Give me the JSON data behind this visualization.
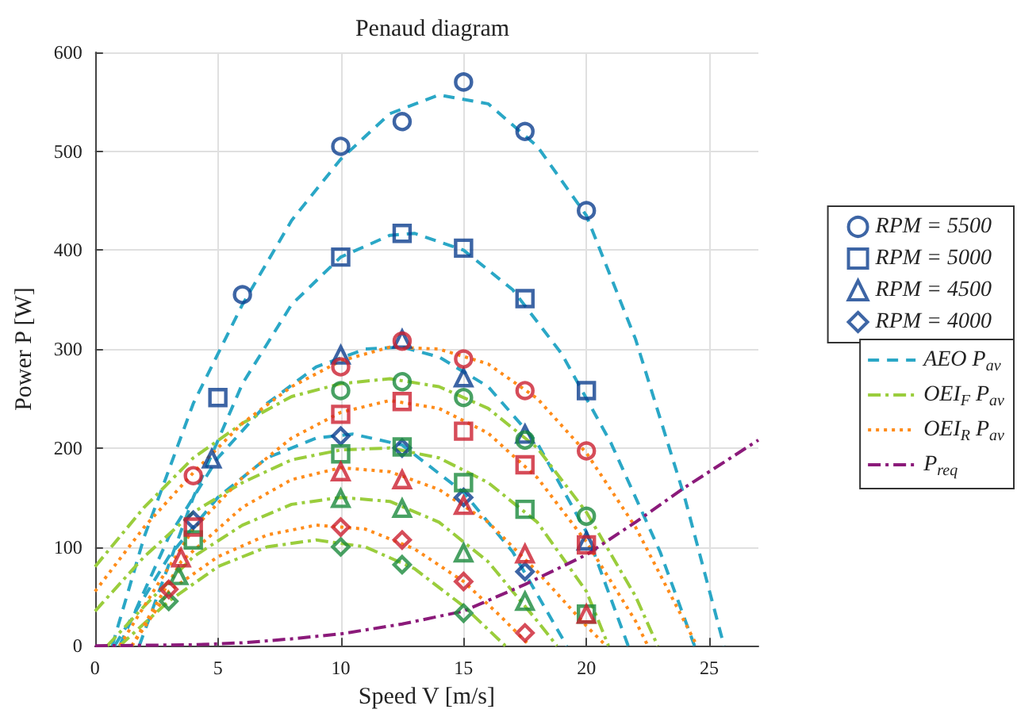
{
  "chart_data": {
    "type": "scatter",
    "title": "Penaud diagram",
    "xlabel": "Speed V [m/s]",
    "ylabel": "Power P [W]",
    "xlim": [
      0,
      27
    ],
    "xticks": [
      0,
      5,
      10,
      15,
      20,
      25
    ],
    "ylim": [
      0,
      600
    ],
    "yticks": [
      0,
      100,
      200,
      300,
      400,
      500,
      600
    ],
    "grid": true,
    "legend": "right",
    "series": [
      {
        "name": "RPM = 5500",
        "color": "#0d3f8f",
        "marker": "circle",
        "x": [
          6,
          10,
          12.5,
          15,
          17.5,
          20
        ],
        "values": [
          355,
          505,
          530,
          570,
          520,
          440
        ]
      },
      {
        "name": "RPM = 5000",
        "color": "#0d3f8f",
        "marker": "square",
        "x": [
          5,
          10,
          12.5,
          15,
          17.5,
          20
        ],
        "values": [
          251,
          393,
          417,
          402,
          351,
          258
        ]
      },
      {
        "name": "RPM = 4500",
        "color": "#0d3f8f",
        "marker": "triangle",
        "x": [
          4.75,
          10,
          12.5,
          15,
          17.5,
          20
        ],
        "values": [
          189,
          294,
          310,
          271,
          214,
          106
        ]
      },
      {
        "name": "RPM = 4000",
        "color": "#0d3f8f",
        "marker": "diamond",
        "x": [
          4,
          10,
          12.5,
          15,
          17.5
        ],
        "values": [
          127,
          212,
          200,
          150,
          75
        ]
      },
      {
        "color": "#1a8a3c",
        "marker": "circle",
        "x": [
          10,
          12.5,
          15,
          17.5,
          20
        ],
        "values": [
          258,
          267,
          251,
          208,
          131
        ]
      },
      {
        "color": "#1a8a3c",
        "marker": "square",
        "x": [
          4,
          10,
          12.5,
          15,
          17.5,
          20
        ],
        "values": [
          107,
          194,
          201,
          165,
          138,
          32
        ]
      },
      {
        "color": "#1a8a3c",
        "marker": "triangle",
        "x": [
          3.4,
          10,
          12.5,
          15,
          17.5
        ],
        "values": [
          71,
          149,
          139,
          94,
          45
        ]
      },
      {
        "color": "#1a8a3c",
        "marker": "diamond",
        "x": [
          3,
          10,
          12.5,
          15
        ],
        "values": [
          45,
          100,
          82,
          33
        ]
      },
      {
        "color": "#cc1f2f",
        "marker": "circle",
        "x": [
          4,
          10,
          12.5,
          15,
          17.5,
          20
        ],
        "values": [
          172,
          282,
          308,
          290,
          258,
          197
        ]
      },
      {
        "color": "#cc1f2f",
        "marker": "square",
        "x": [
          4,
          10,
          12.5,
          15,
          17.5,
          20
        ],
        "values": [
          120,
          234,
          247,
          217,
          183,
          102
        ]
      },
      {
        "color": "#cc1f2f",
        "marker": "triangle",
        "x": [
          3.5,
          10,
          12.5,
          15,
          17.5,
          20
        ],
        "values": [
          89,
          176,
          168,
          142,
          93,
          32
        ]
      },
      {
        "color": "#cc1f2f",
        "marker": "diamond",
        "x": [
          3,
          10,
          12.5,
          15,
          17.5
        ],
        "values": [
          57,
          120,
          107,
          65,
          13
        ]
      },
      {
        "name": "AEO P$_{av}$",
        "type": "line",
        "line_style": "dashed",
        "color": "#2aa7c6",
        "x": [
          0.7,
          2,
          4,
          6,
          8,
          10,
          12,
          14,
          16,
          18,
          20,
          22,
          24,
          25.6
        ],
        "values": [
          0,
          110,
          245,
          345,
          430,
          492,
          538,
          557,
          548,
          505,
          435,
          310,
          150,
          0
        ]
      },
      {
        "type": "line",
        "line_style": "dashed",
        "color": "#2aa7c6",
        "x": [
          1.8,
          4,
          6,
          8,
          10,
          12,
          13,
          15,
          17,
          19,
          21,
          23,
          24.4
        ],
        "values": [
          0,
          150,
          265,
          345,
          393,
          415,
          417,
          400,
          360,
          295,
          205,
          95,
          0
        ]
      },
      {
        "type": "line",
        "line_style": "dashed",
        "color": "#2aa7c6",
        "x": [
          1,
          3,
          5,
          7,
          9,
          11,
          12.5,
          14,
          16,
          18,
          20,
          21.7
        ],
        "values": [
          0,
          110,
          190,
          245,
          282,
          300,
          302,
          292,
          262,
          205,
          115,
          0
        ]
      },
      {
        "type": "line",
        "line_style": "dashed",
        "color": "#2aa7c6",
        "x": [
          0.8,
          3,
          5,
          7,
          9,
          10.5,
          12.5,
          15,
          17,
          19.2
        ],
        "values": [
          0,
          90,
          150,
          190,
          210,
          214,
          203,
          155,
          95,
          0
        ]
      },
      {
        "name": "OEI$_{F}$ P$_{av}$",
        "type": "line",
        "line_style": "dashdot",
        "color": "#9acd3c",
        "x": [
          0,
          2,
          4,
          6,
          8,
          10,
          12,
          14,
          16,
          18,
          20,
          22,
          22.9
        ],
        "values": [
          80,
          140,
          190,
          225,
          252,
          265,
          270,
          262,
          240,
          200,
          135,
          50,
          0
        ]
      },
      {
        "type": "line",
        "line_style": "dashdot",
        "color": "#9acd3c",
        "x": [
          0,
          2,
          4,
          6,
          8,
          10,
          12,
          14,
          16,
          18,
          20,
          20.9
        ],
        "values": [
          35,
          90,
          135,
          165,
          188,
          198,
          200,
          190,
          165,
          125,
          55,
          0
        ]
      },
      {
        "type": "line",
        "line_style": "dashdot",
        "color": "#9acd3c",
        "x": [
          0.5,
          2,
          4,
          6,
          8,
          10,
          12,
          14,
          16,
          18,
          18.8
        ],
        "values": [
          0,
          40,
          90,
          122,
          143,
          150,
          146,
          125,
          85,
          25,
          0
        ]
      },
      {
        "type": "line",
        "line_style": "dashdot",
        "color": "#9acd3c",
        "x": [
          1,
          3,
          5,
          7,
          9,
          11,
          13,
          15,
          16.7
        ],
        "values": [
          0,
          45,
          80,
          100,
          107,
          100,
          78,
          40,
          0
        ]
      },
      {
        "name": "OEI$_{R}$ P$_{av}$",
        "type": "line",
        "line_style": "dotted",
        "color": "#ff8c1a",
        "x": [
          0,
          2,
          4,
          6,
          8,
          10,
          12,
          14,
          16,
          18,
          20,
          22,
          24.5
        ],
        "values": [
          55,
          120,
          175,
          225,
          262,
          288,
          302,
          300,
          285,
          250,
          195,
          120,
          0
        ]
      },
      {
        "type": "line",
        "line_style": "dotted",
        "color": "#ff8c1a",
        "x": [
          1,
          2.5,
          4,
          6,
          8,
          10,
          12,
          14,
          16,
          18,
          20,
          22,
          22.5
        ],
        "values": [
          0,
          60,
          118,
          170,
          210,
          236,
          248,
          240,
          215,
          170,
          105,
          25,
          0
        ]
      },
      {
        "type": "line",
        "line_style": "dotted",
        "color": "#ff8c1a",
        "x": [
          1.5,
          3.5,
          6,
          8,
          10,
          12,
          14,
          16,
          18,
          20,
          20.8
        ],
        "values": [
          0,
          85,
          140,
          168,
          180,
          176,
          158,
          125,
          75,
          20,
          0
        ]
      },
      {
        "type": "line",
        "line_style": "dotted",
        "color": "#ff8c1a",
        "x": [
          1.5,
          3,
          5,
          7,
          9,
          11,
          13,
          15,
          16.5,
          17.7
        ],
        "values": [
          0,
          55,
          90,
          112,
          122,
          118,
          98,
          65,
          30,
          0
        ]
      },
      {
        "name": "P$_{req}$",
        "type": "line",
        "line_style": "dashdot",
        "color": "#8b1a7a",
        "x": [
          0,
          4,
          6,
          8,
          10,
          12.5,
          15,
          17.5,
          20,
          22,
          24,
          27
        ],
        "values": [
          0,
          1,
          3,
          7,
          12,
          22,
          35,
          62,
          92,
          125,
          160,
          208
        ]
      }
    ]
  }
}
